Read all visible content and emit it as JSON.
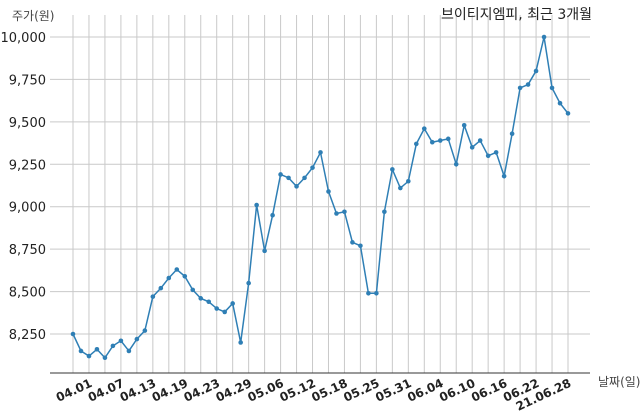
{
  "chart_data": {
    "type": "line",
    "title": "브이티지엠피, 최근 3개월",
    "ylabel": "주가(원)",
    "xlabel": "날짜(일)",
    "ylim": [
      8100,
      10050
    ],
    "y_ticks": [
      8250,
      8500,
      8750,
      9000,
      9250,
      9500,
      9750,
      10000
    ],
    "y_tick_labels": [
      "8,250",
      "8,500",
      "8,750",
      "9,000",
      "9,250",
      "9,500",
      "9,750",
      "10,000"
    ],
    "x_tick_labels": [
      "04.01",
      "04.07",
      "04.13",
      "04.19",
      "04.23",
      "04.29",
      "05.06",
      "05.12",
      "05.18",
      "05.25",
      "05.31",
      "06.04",
      "06.10",
      "06.16",
      "06.22",
      "21.06.28"
    ],
    "x_tick_indices": [
      2,
      6,
      10,
      14,
      18,
      22,
      26,
      30,
      34,
      38,
      42,
      46,
      50,
      54,
      58,
      62
    ],
    "grid": true,
    "line_color": "#2f7fb5",
    "series": [
      {
        "values": [
          8250,
          8150,
          8120,
          8160,
          8110,
          8180,
          8210,
          8150,
          8220,
          8270,
          8470,
          8520,
          8580,
          8630,
          8590,
          8510,
          8460,
          8440,
          8400,
          8380,
          8430,
          8200,
          8550,
          9010,
          8740,
          8950,
          9190,
          9170,
          9120,
          9170,
          9230,
          9320,
          9090,
          8960,
          8970,
          8790,
          8770,
          8490,
          8490,
          8970,
          9220,
          9110,
          9150,
          9370,
          9460,
          9380,
          9390,
          9400,
          9250,
          9480,
          9350,
          9390,
          9300,
          9320,
          9180,
          9430,
          9700,
          9720,
          9800,
          10000,
          9700,
          9610,
          9550
        ]
      }
    ]
  }
}
